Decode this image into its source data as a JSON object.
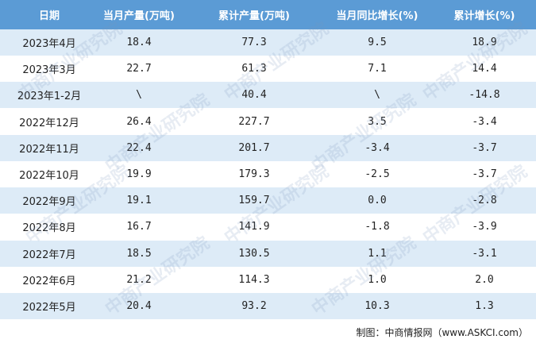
{
  "table": {
    "header": [
      "日期",
      "当月产量(万吨)",
      "累计产量(万吨)",
      "当月同比增长(%)",
      "累计增长(%)"
    ],
    "rows": [
      [
        "2023年4月",
        "18.4",
        "77.3",
        "9.5",
        "18.9"
      ],
      [
        "2023年3月",
        "22.7",
        "61.3",
        "7.1",
        "14.4"
      ],
      [
        "2023年1-2月",
        "\\",
        "40.4",
        "\\",
        "-14.8"
      ],
      [
        "2022年12月",
        "26.4",
        "227.7",
        "3.5",
        "-3.4"
      ],
      [
        "2022年11月",
        "22.4",
        "201.7",
        "-3.4",
        "-3.7"
      ],
      [
        "2022年10月",
        "19.9",
        "179.3",
        "-2.5",
        "-3.7"
      ],
      [
        "2022年9月",
        "19.1",
        "159.7",
        "0.0",
        "-2.8"
      ],
      [
        "2022年8月",
        "16.7",
        "141.9",
        "-1.8",
        "-3.9"
      ],
      [
        "2022年7月",
        "18.5",
        "130.5",
        "1.1",
        "-3.1"
      ],
      [
        "2022年6月",
        "21.2",
        "114.3",
        "1.0",
        "2.0"
      ],
      [
        "2022年5月",
        "20.4",
        "93.2",
        "10.3",
        "1.3"
      ]
    ]
  },
  "watermark": "中商产业研究院",
  "source": "制图：中商情报网（www.ASKCI.com）"
}
